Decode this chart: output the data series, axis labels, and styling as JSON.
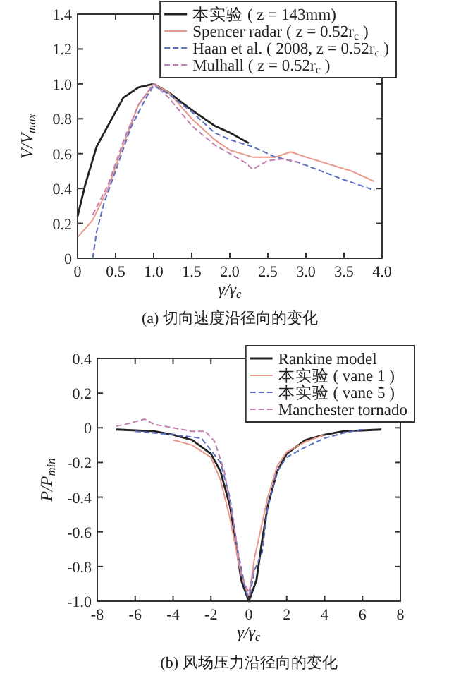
{
  "chart_data": [
    {
      "type": "line",
      "xlabel": "γ/γ$_{c}$",
      "ylabel": "V/V$_{max}$",
      "xlim": [
        0,
        4
      ],
      "ylim": [
        0,
        1.4
      ],
      "xticks": [
        0,
        0.5,
        {
          "value": 1,
          "label": "1.0"
        },
        1.5,
        {
          "value": 2,
          "label": "2.0"
        },
        2.5,
        {
          "value": 3,
          "label": "3.0"
        },
        3.5,
        {
          "value": 4,
          "label": "4.0"
        }
      ],
      "yticks": [
        0,
        0.2,
        0.4,
        0.6,
        0.8,
        {
          "value": 1,
          "label": "1.0"
        },
        1.2,
        1.4
      ],
      "grid": false,
      "legend": "top right",
      "annotations": [
        "(a) 切向速度沿径向的变化"
      ],
      "series": [
        {
          "name": "本实验 ( z = 143mm)",
          "color": "#222222",
          "line_style": "solid",
          "x": [
            0,
            0.1,
            0.25,
            0.4,
            0.6,
            0.8,
            1.0,
            1.2,
            1.5,
            1.8,
            2.0,
            2.25
          ],
          "values": [
            0.24,
            0.42,
            0.64,
            0.76,
            0.92,
            0.98,
            1.0,
            0.95,
            0.85,
            0.76,
            0.72,
            0.66
          ]
        },
        {
          "name": "Spencer radar ( z = 0.52r$_{c}$ )",
          "color": "#e89a8a",
          "line_style": "solid",
          "x": [
            0,
            0.2,
            0.4,
            0.6,
            0.8,
            1.0,
            1.2,
            1.5,
            1.8,
            2.0,
            2.3,
            2.6,
            2.8,
            3.0,
            3.3,
            3.6,
            3.9
          ],
          "values": [
            0.12,
            0.22,
            0.4,
            0.65,
            0.88,
            1.0,
            0.95,
            0.8,
            0.68,
            0.62,
            0.58,
            0.58,
            0.61,
            0.58,
            0.54,
            0.5,
            0.44
          ]
        },
        {
          "name": "Haan et al. ( 2008, z = 0.52r$_{c}$ )",
          "color": "#5a6fc0",
          "line_style": "dashed",
          "x": [
            0.2,
            0.25,
            0.35,
            0.5,
            0.7,
            0.9,
            1.0,
            1.2,
            1.5,
            1.8,
            2.0,
            2.3,
            2.6,
            2.9,
            3.2,
            3.5,
            3.9
          ],
          "values": [
            0,
            0.15,
            0.32,
            0.5,
            0.75,
            0.92,
            0.99,
            0.94,
            0.84,
            0.72,
            0.68,
            0.64,
            0.58,
            0.55,
            0.5,
            0.45,
            0.39
          ]
        },
        {
          "name": "Mulhall ( z = 0.52r$_{c}$ )",
          "color": "#c080b0",
          "line_style": "dashed",
          "x": [
            0.2,
            0.4,
            0.6,
            0.8,
            1.0,
            1.2,
            1.5,
            1.8,
            2.0,
            2.2,
            2.3,
            2.5,
            2.7,
            2.9
          ],
          "values": [
            0.25,
            0.42,
            0.67,
            0.88,
            1.0,
            0.92,
            0.76,
            0.65,
            0.6,
            0.55,
            0.51,
            0.56,
            0.57,
            0.55
          ]
        }
      ]
    },
    {
      "type": "line",
      "xlabel": "γ/γ$_{c}$",
      "ylabel": "P/P$_{min}$",
      "xlim": [
        -8,
        8
      ],
      "ylim": [
        -1,
        0.4
      ],
      "xticks": [
        -8,
        -6,
        -4,
        -2,
        0,
        2,
        4,
        6,
        8
      ],
      "yticks": [
        {
          "value": -1,
          "label": "-1.0"
        },
        {
          "value": -0.8,
          "label": "-0.8"
        },
        {
          "value": -0.6,
          "label": "-0.6"
        },
        {
          "value": -0.4,
          "label": "-0.4"
        },
        {
          "value": -0.2,
          "label": "-0.2"
        },
        0,
        0.2,
        0.4
      ],
      "grid": false,
      "legend": "top right",
      "annotations": [
        "(b) 风场压力沿径向的变化"
      ],
      "series": [
        {
          "name": "Rankine model",
          "color": "#222222",
          "line_style": "solid",
          "x": [
            -7,
            -5,
            -4,
            -3,
            -2,
            -1.5,
            -1,
            -0.7,
            -0.4,
            0,
            0.4,
            0.7,
            1,
            1.5,
            2,
            3,
            4,
            5,
            7
          ],
          "values": [
            -0.01,
            -0.02,
            -0.04,
            -0.07,
            -0.15,
            -0.25,
            -0.45,
            -0.65,
            -0.88,
            -1.0,
            -0.88,
            -0.65,
            -0.45,
            -0.25,
            -0.15,
            -0.07,
            -0.04,
            -0.02,
            -0.01
          ]
        },
        {
          "name": "本实验 ( vane 1 )",
          "color": "#e89a8a",
          "line_style": "solid",
          "x": [
            -4,
            -3,
            -2,
            -1.5,
            -1,
            -0.5,
            0,
            0.3,
            0.6,
            1,
            1.5,
            2,
            3,
            4
          ],
          "values": [
            -0.07,
            -0.1,
            -0.17,
            -0.3,
            -0.52,
            -0.8,
            -0.98,
            -0.75,
            -0.6,
            -0.4,
            -0.22,
            -0.14,
            -0.08,
            -0.04
          ]
        },
        {
          "name": "本实验 ( vane 5 )",
          "color": "#5a6fc0",
          "line_style": "dashed",
          "x": [
            -6,
            -4,
            -2.5,
            -1.5,
            -1,
            -0.6,
            -0.2,
            0,
            0.3,
            0.7,
            1,
            1.5,
            2,
            3,
            4,
            5,
            6
          ],
          "values": [
            -0.02,
            -0.04,
            -0.06,
            -0.2,
            -0.4,
            -0.7,
            -0.92,
            -1.0,
            -0.82,
            -0.72,
            -0.45,
            -0.25,
            -0.17,
            -0.11,
            -0.06,
            -0.03,
            -0.01
          ]
        },
        {
          "name": "Manchester tornado",
          "color": "#c080b0",
          "line_style": "dashed",
          "x": [
            -7,
            -6.5,
            -5.5,
            -5,
            -4,
            -3,
            -2.3,
            -1.8,
            -1.3,
            -0.8,
            -0.4,
            0,
            0.3
          ],
          "values": [
            0.01,
            0.02,
            0.05,
            0.02,
            0,
            -0.02,
            -0.02,
            -0.08,
            -0.25,
            -0.55,
            -0.85,
            -0.95,
            -0.8
          ]
        }
      ]
    }
  ]
}
